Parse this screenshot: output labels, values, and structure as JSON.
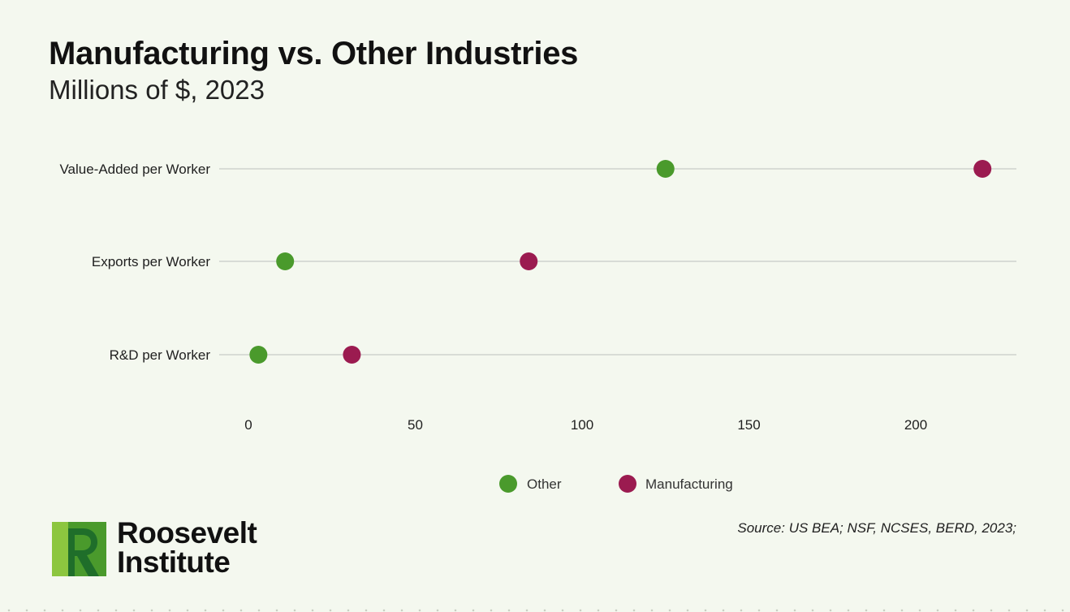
{
  "chart_data": {
    "type": "scatter",
    "title": "Manufacturing vs. Other Industries",
    "subtitle": "Millions of $, 2023",
    "categories": [
      "Value-Added per Worker",
      "Exports per Worker",
      "R&D per Worker"
    ],
    "series": [
      {
        "name": "Other",
        "color": "#4a9a2c",
        "values": [
          125,
          11,
          3
        ]
      },
      {
        "name": "Manufacturing",
        "color": "#9b1b50",
        "values": [
          220,
          84,
          31
        ]
      }
    ],
    "xlim": [
      0,
      230
    ],
    "xticks": [
      0,
      50,
      100,
      150,
      200
    ],
    "grid": "horizontal category lines",
    "legend_position": "bottom-center"
  },
  "source": "Source: US BEA; NSF, NCSES, BERD, 2023;",
  "logo": {
    "line1": "Roosevelt",
    "line2": "Institute",
    "colors": {
      "dark": "#1f6e2a",
      "mid": "#4a9a2c",
      "light": "#8cc63f"
    }
  }
}
